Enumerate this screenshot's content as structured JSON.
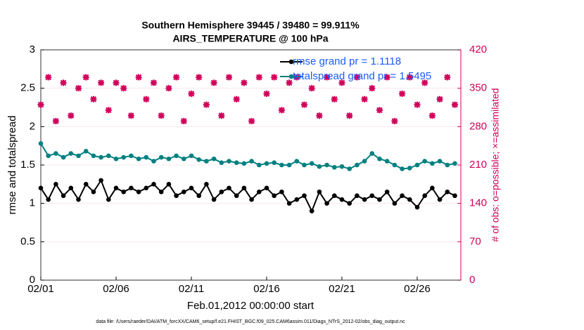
{
  "chart_data": {
    "type": "line",
    "title": "Southern Hemisphere 39445 / 39480 = 99.911%",
    "subtitle": "AIRS_TEMPERATURE @ 100 hPa",
    "xlabel": "Feb.01,2012 00:00:00 start",
    "ylabel": "rmse and totalspread",
    "y2label": "# of obs: o=possible; ×=assimilated",
    "footnote": "data file: /Users/raeder/DAI/ATM_forcXX/CAM6_setup/f.e21.FHIST_BGC.f09_025.CAM6assim.011/Diags_NTrS_2012-02/obs_diag_output.nc",
    "x": [
      0,
      0.5,
      1,
      1.5,
      2,
      2.5,
      3,
      3.5,
      4,
      4.5,
      5,
      5.5,
      6,
      6.5,
      7,
      7.5,
      8,
      8.5,
      9,
      9.5,
      10,
      10.5,
      11,
      11.5,
      12,
      12.5,
      13,
      13.5,
      14,
      14.5,
      15,
      15.5,
      16,
      16.5,
      17,
      17.5,
      18,
      18.5,
      19,
      19.5,
      20,
      20.5,
      21,
      21.5,
      22,
      22.5,
      23,
      23.5,
      24,
      24.5,
      25,
      25.5,
      26,
      26.5,
      27,
      27.5
    ],
    "xlim": [
      0,
      27.9
    ],
    "xticks": [
      {
        "value": 0,
        "label": "02/01"
      },
      {
        "value": 5,
        "label": "02/06"
      },
      {
        "value": 10,
        "label": "02/11"
      },
      {
        "value": 15,
        "label": "02/16"
      },
      {
        "value": 20,
        "label": "02/21"
      },
      {
        "value": 25,
        "label": "02/26"
      }
    ],
    "ylim": [
      0,
      3
    ],
    "yticks": [
      0,
      0.5,
      1,
      1.5,
      2,
      2.5,
      3
    ],
    "y2lim": [
      0,
      420
    ],
    "y2ticks": [
      0,
      70,
      140,
      210,
      280,
      350,
      420
    ],
    "y2color": "#d1005a",
    "grid": true,
    "legend": "upper right",
    "legend_text_color": "#1a5cff",
    "series": [
      {
        "name": "rmse grand pr = 1.1118",
        "color": "#000000",
        "mode": "lines+markers",
        "values": [
          1.2,
          1.05,
          1.25,
          1.1,
          1.2,
          1.05,
          1.25,
          1.15,
          1.3,
          1.05,
          1.2,
          1.15,
          1.2,
          1.15,
          1.2,
          1.25,
          1.15,
          1.25,
          1.1,
          1.15,
          1.2,
          1.1,
          1.25,
          1.05,
          1.15,
          1.2,
          1.1,
          1.2,
          1.05,
          1.15,
          1.2,
          1.1,
          1.15,
          1.0,
          1.05,
          1.1,
          0.9,
          1.15,
          1.0,
          1.1,
          1.05,
          1.0,
          1.1,
          1.05,
          1.1,
          1.05,
          1.15,
          1.0,
          1.1,
          1.05,
          0.95,
          1.1,
          1.2,
          1.05,
          1.15,
          1.1
        ]
      },
      {
        "name": "totalspread grand pr = 1.5495",
        "color": "#008080",
        "mode": "lines+markers",
        "values": [
          1.78,
          1.62,
          1.65,
          1.6,
          1.65,
          1.62,
          1.68,
          1.62,
          1.6,
          1.62,
          1.58,
          1.6,
          1.62,
          1.58,
          1.6,
          1.55,
          1.6,
          1.58,
          1.62,
          1.58,
          1.62,
          1.57,
          1.55,
          1.58,
          1.53,
          1.55,
          1.53,
          1.52,
          1.55,
          1.5,
          1.52,
          1.53,
          1.5,
          1.5,
          1.55,
          1.5,
          1.52,
          1.48,
          1.5,
          1.47,
          1.48,
          1.45,
          1.5,
          1.55,
          1.65,
          1.58,
          1.55,
          1.5,
          1.45,
          1.46,
          1.5,
          1.55,
          1.52,
          1.55,
          1.5,
          1.52
        ]
      },
      {
        "color": "#d1005a",
        "mode": "markers",
        "axis": "y2",
        "values": [
          320,
          370,
          290,
          360,
          300,
          350,
          370,
          330,
          360,
          310,
          360,
          350,
          300,
          370,
          330,
          360,
          300,
          350,
          370,
          290,
          340,
          370,
          320,
          360,
          300,
          370,
          330,
          360,
          290,
          370,
          340,
          370,
          310,
          360,
          370,
          320,
          350,
          300,
          370,
          330,
          360,
          300,
          370,
          330,
          350,
          310,
          370,
          290,
          340,
          370,
          320,
          360,
          300,
          330,
          370,
          320
        ]
      }
    ]
  }
}
